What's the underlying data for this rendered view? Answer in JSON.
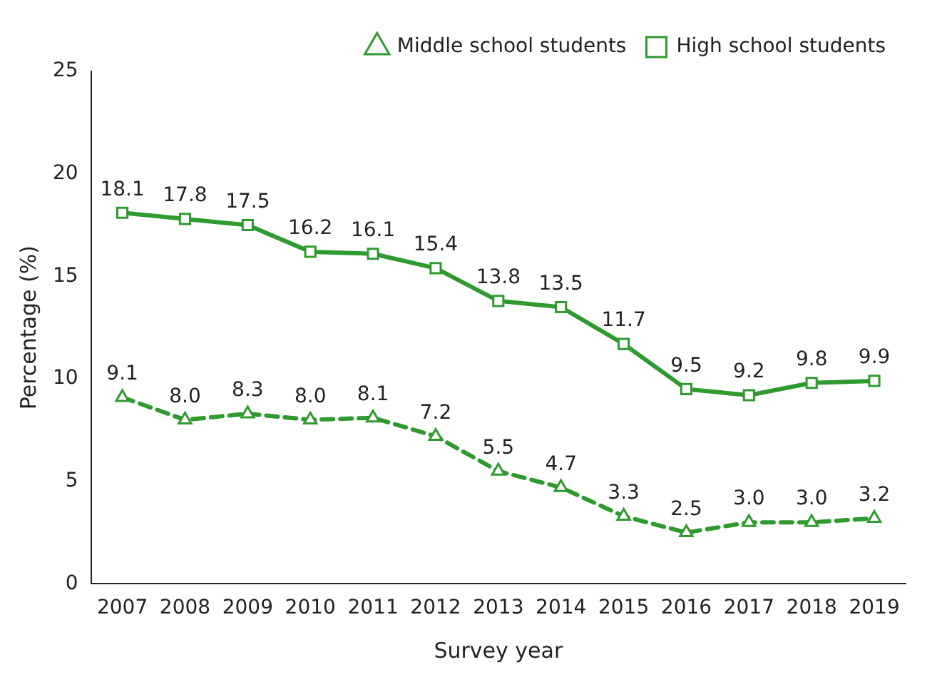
{
  "chart_data": {
    "type": "line",
    "xlabel": "Survey year",
    "ylabel": "Percentage (%)",
    "categories": [
      "2007",
      "2008",
      "2009",
      "2010",
      "2011",
      "2012",
      "2013",
      "2014",
      "2015",
      "2016",
      "2017",
      "2018",
      "2019"
    ],
    "series": [
      {
        "name": "Middle school students",
        "color": "#2f9a2f",
        "marker": "triangle",
        "line_style": "dashed",
        "values": [
          9.1,
          8.0,
          8.3,
          8.0,
          8.1,
          7.2,
          5.5,
          4.7,
          3.3,
          2.5,
          3.0,
          3.0,
          3.2
        ],
        "value_labels": [
          "9.1",
          "8.0",
          "8.3",
          "8.0",
          "8.1",
          "7.2",
          "5.5",
          "4.7",
          "3.3",
          "2.5",
          "3.0",
          "3.0",
          "3.2"
        ]
      },
      {
        "name": "High school students",
        "color": "#2f9a2f",
        "marker": "square",
        "line_style": "solid",
        "values": [
          18.1,
          17.8,
          17.5,
          16.2,
          16.1,
          15.4,
          13.8,
          13.5,
          11.7,
          9.5,
          9.2,
          9.8,
          9.9
        ],
        "value_labels": [
          "18.1",
          "17.8",
          "17.5",
          "16.2",
          "16.1",
          "15.4",
          "13.8",
          "13.5",
          "11.7",
          "9.5",
          "9.2",
          "9.8",
          "9.9"
        ]
      }
    ],
    "ylim": [
      0,
      25
    ],
    "yticks": [
      0,
      5,
      10,
      15,
      20,
      25
    ],
    "grid": false,
    "legend": "top right"
  }
}
